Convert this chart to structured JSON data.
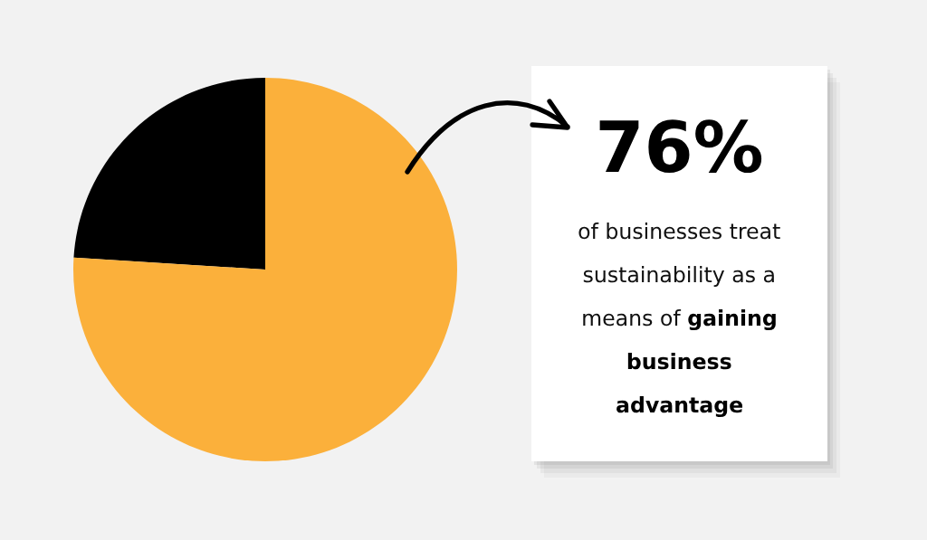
{
  "chart_data": {
    "type": "pie",
    "categories": [
      null,
      null
    ],
    "values": [
      24,
      76
    ],
    "colors": [
      "#000000",
      "#fbb03b"
    ],
    "annotations": [
      "76%",
      "of businesses treat",
      "sustainability as a",
      "means of",
      "gaining",
      "business",
      "advantage"
    ]
  }
}
